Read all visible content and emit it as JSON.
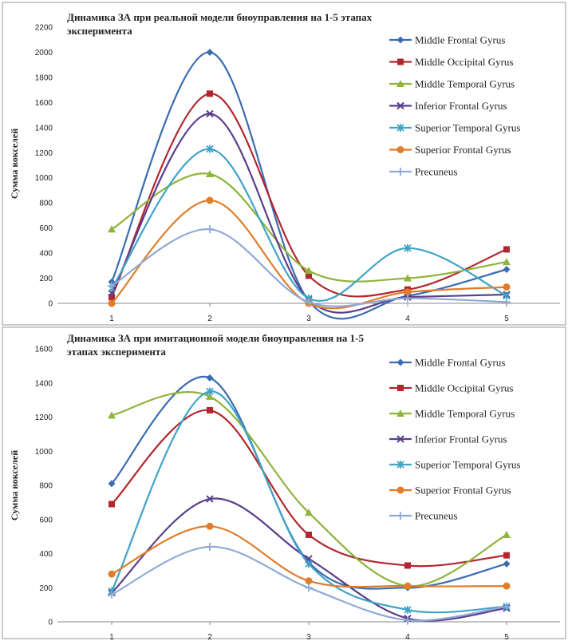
{
  "chart_data": [
    {
      "type": "line",
      "title": "Динамика ЗА при реальной модели биоуправления на 1-5 этапах эксперимента",
      "title_lines": [
        "Динамика ЗА при реальной модели биоуправления на 1-5 этапах",
        "эксперимента"
      ],
      "xlabel": "",
      "ylabel": "Сумма вокселей",
      "categories": [
        "1",
        "2",
        "3",
        "4",
        "5"
      ],
      "ylim": [
        0,
        2200
      ],
      "yticks": [
        "0",
        "200",
        "400",
        "600",
        "800",
        "1000",
        "1200",
        "1400",
        "1600",
        "1800",
        "2000",
        "2200"
      ],
      "grid": false,
      "legend": "right",
      "series": [
        {
          "name": "Middle Frontal Gyrus",
          "values": [
            170,
            2000,
            20,
            60,
            270
          ],
          "color": "#3b6cb0",
          "marker": "diamond"
        },
        {
          "name": "Middle Occipital Gyrus",
          "values": [
            50,
            1670,
            220,
            110,
            430
          ],
          "color": "#b1272d",
          "marker": "square"
        },
        {
          "name": "Middle Temporal Gyrus",
          "values": [
            590,
            1030,
            260,
            200,
            330
          ],
          "color": "#8fb43a",
          "marker": "triangle"
        },
        {
          "name": "Inferior Frontal Gyrus",
          "values": [
            80,
            1510,
            30,
            50,
            70
          ],
          "color": "#5b3e8c",
          "marker": "x"
        },
        {
          "name": "Superior Temporal Gyrus",
          "values": [
            120,
            1230,
            40,
            440,
            60
          ],
          "color": "#3fa4c8",
          "marker": "star"
        },
        {
          "name": "Superior Frontal Gyrus",
          "values": [
            0,
            820,
            0,
            90,
            130
          ],
          "color": "#e07d2a",
          "marker": "circle"
        },
        {
          "name": "Precuneus",
          "values": [
            140,
            590,
            10,
            40,
            10
          ],
          "color": "#8faad6",
          "marker": "plus"
        }
      ]
    },
    {
      "type": "line",
      "title": "Динамика ЗА при имитационной модели биоуправления на 1-5 этапах эксперимента",
      "title_lines": [
        "Динамика ЗА при имитационной модели биоуправления на 1-5",
        "этапах эксперимента"
      ],
      "xlabel": "",
      "ylabel": "Сумма вокселей",
      "categories": [
        "1",
        "2",
        "3",
        "4",
        "5"
      ],
      "ylim": [
        0,
        1600
      ],
      "yticks": [
        "0",
        "200",
        "400",
        "600",
        "800",
        "1000",
        "1200",
        "1400",
        "1600"
      ],
      "grid": false,
      "legend": "right",
      "series": [
        {
          "name": "Middle Frontal Gyrus",
          "values": [
            810,
            1430,
            350,
            200,
            340
          ],
          "color": "#3b6cb0",
          "marker": "diamond"
        },
        {
          "name": "Middle Occipital Gyrus",
          "values": [
            690,
            1240,
            510,
            330,
            390
          ],
          "color": "#b1272d",
          "marker": "square"
        },
        {
          "name": "Middle Temporal Gyrus",
          "values": [
            1210,
            1320,
            640,
            210,
            510
          ],
          "color": "#8fb43a",
          "marker": "triangle"
        },
        {
          "name": "Inferior Frontal Gyrus",
          "values": [
            170,
            720,
            370,
            20,
            80
          ],
          "color": "#5b3e8c",
          "marker": "x"
        },
        {
          "name": "Superior Temporal Gyrus",
          "values": [
            180,
            1350,
            340,
            70,
            90
          ],
          "color": "#3fa4c8",
          "marker": "star"
        },
        {
          "name": "Superior Frontal Gyrus",
          "values": [
            280,
            560,
            240,
            210,
            210
          ],
          "color": "#e07d2a",
          "marker": "circle"
        },
        {
          "name": "Precuneus",
          "values": [
            160,
            440,
            200,
            10,
            90
          ],
          "color": "#8faad6",
          "marker": "plus"
        }
      ]
    }
  ]
}
